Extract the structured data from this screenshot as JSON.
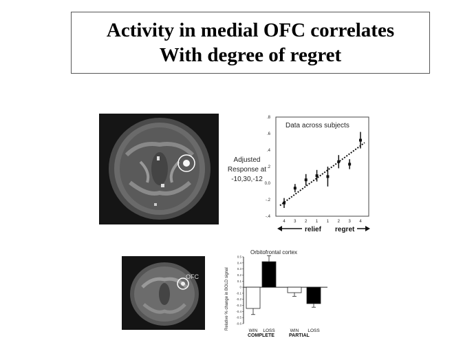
{
  "slide": {
    "title_line1": "Activity in medial OFC correlates",
    "title_line2": "With degree of regret"
  },
  "top_figure": {
    "side_label_line1": "Adjusted",
    "side_label_line2": "Response at",
    "side_label_line3": "-10,30,-12"
  },
  "bottom_figure": {
    "region_label": "OFC"
  },
  "chart_data": [
    {
      "type": "scatter",
      "title": "Data across subjects",
      "x_ticks": [
        "4",
        "3",
        "2",
        "1",
        "1",
        "2",
        "3",
        "4"
      ],
      "x_groups": [
        "relief",
        "regret"
      ],
      "y_ticks": [
        ".8",
        ".6",
        ".4",
        ".2",
        "0.0",
        "-.2",
        "-.4"
      ],
      "ylim": [
        -0.4,
        0.8
      ],
      "points": [
        {
          "x": "relief 4",
          "y": -0.24,
          "err": 0.06
        },
        {
          "x": "relief 3",
          "y": -0.06,
          "err": 0.05
        },
        {
          "x": "relief 2",
          "y": 0.04,
          "err": 0.07
        },
        {
          "x": "relief 1",
          "y": 0.09,
          "err": 0.07
        },
        {
          "x": "regret 1",
          "y": 0.08,
          "err": 0.12
        },
        {
          "x": "regret 2",
          "y": 0.26,
          "err": 0.08
        },
        {
          "x": "regret 3",
          "y": 0.23,
          "err": 0.06
        },
        {
          "x": "regret 4",
          "y": 0.52,
          "err": 0.1
        }
      ],
      "fit_line": {
        "y_start": -0.27,
        "y_end": 0.49
      },
      "grid": false
    },
    {
      "type": "bar",
      "title": "Orbitofrontal cortex",
      "ylabel": "Relative % change in BOLD signal",
      "y_ticks": [
        "0.5",
        "0.4",
        "0.3",
        "0.2",
        "0.1",
        "0",
        "-0.1",
        "-0.2",
        "-0.3",
        "-0.4",
        "-0.5",
        "-0.6"
      ],
      "ylim": [
        -0.6,
        0.5
      ],
      "categories": [
        "WIN",
        "LOSS",
        "WIN",
        "LOSS"
      ],
      "groups": [
        "COMPLETE",
        "PARTIAL"
      ],
      "values": [
        -0.35,
        0.42,
        -0.09,
        -0.27
      ],
      "errors": [
        0.1,
        0.1,
        0.06,
        0.06
      ],
      "fills": [
        "#ffffff",
        "#000000",
        "#ffffff",
        "#000000"
      ]
    }
  ]
}
